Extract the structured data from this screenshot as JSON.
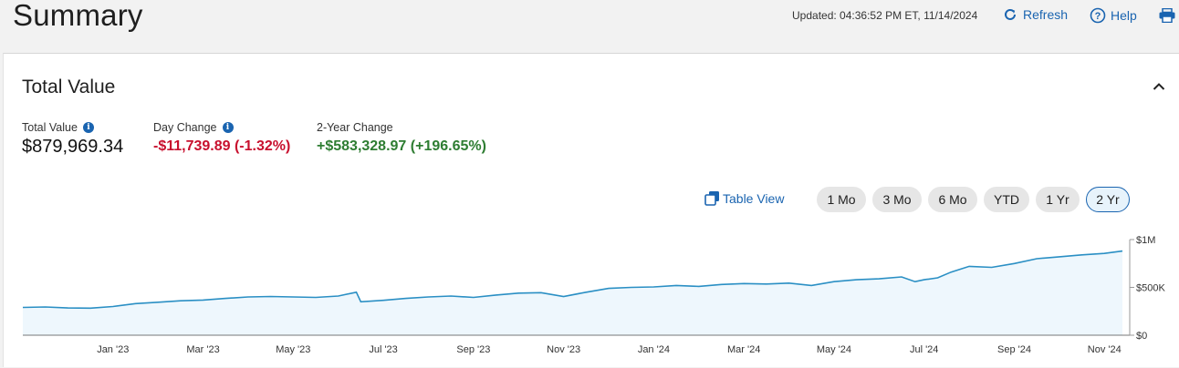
{
  "header": {
    "title": "Summary",
    "updated": "Updated: 04:36:52 PM ET, 11/14/2024",
    "refresh_label": "Refresh",
    "help_label": "Help"
  },
  "card": {
    "title": "Total Value",
    "metrics": {
      "total_value": {
        "label": "Total Value",
        "value": "$879,969.34"
      },
      "day_change": {
        "label": "Day Change",
        "value": "-$11,739.89 (-1.32%)"
      },
      "two_year_change": {
        "label": "2-Year Change",
        "value": "+$583,328.97 (+196.65%)"
      }
    },
    "table_view_label": "Table View",
    "ranges": [
      "1 Mo",
      "3 Mo",
      "6 Mo",
      "YTD",
      "1 Yr",
      "2 Yr"
    ],
    "active_range": "2 Yr"
  },
  "colors": {
    "accent": "#1a64b0",
    "negative": "#c8102e",
    "positive": "#2e7d32",
    "line": "#2a8fc4",
    "area": "#eef7fd"
  },
  "chart_data": {
    "type": "area",
    "x_tick_labels": [
      "Jan '23",
      "Mar '23",
      "May '23",
      "Jul '23",
      "Sep '23",
      "Nov '23",
      "Jan '24",
      "Mar '24",
      "May '24",
      "Jul '24",
      "Sep '24",
      "Nov '24"
    ],
    "y_tick_labels": [
      "$1M",
      "$500K",
      "$0"
    ],
    "ylim": [
      0,
      1000000
    ],
    "x_months_from": "Nov '22",
    "x": [
      0,
      0.5,
      1,
      1.5,
      2,
      2.5,
      3,
      3.5,
      4,
      4.5,
      5,
      5.5,
      6,
      6.5,
      7,
      7.4,
      7.5,
      8,
      8.5,
      9,
      9.5,
      10,
      10.5,
      11,
      11.5,
      12,
      12.5,
      13,
      13.5,
      14,
      14.5,
      15,
      15.5,
      16,
      16.5,
      17,
      17.5,
      18,
      18.5,
      19,
      19.5,
      19.8,
      20,
      20.3,
      20.6,
      21,
      21.5,
      22,
      22.5,
      23,
      23.5,
      24,
      24.4
    ],
    "values": [
      290000,
      295000,
      285000,
      283000,
      300000,
      330000,
      345000,
      360000,
      368000,
      385000,
      400000,
      405000,
      400000,
      395000,
      410000,
      450000,
      350000,
      365000,
      385000,
      400000,
      410000,
      395000,
      420000,
      440000,
      445000,
      405000,
      450000,
      490000,
      500000,
      505000,
      520000,
      510000,
      530000,
      540000,
      535000,
      545000,
      520000,
      560000,
      580000,
      590000,
      610000,
      560000,
      580000,
      600000,
      660000,
      720000,
      710000,
      750000,
      800000,
      820000,
      840000,
      855000,
      880000
    ],
    "grid": false,
    "legend": "none"
  }
}
